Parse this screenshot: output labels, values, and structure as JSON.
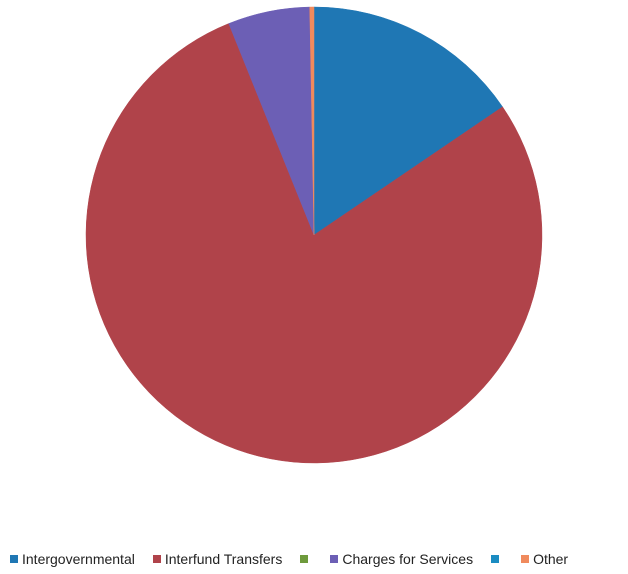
{
  "chart_data": {
    "type": "pie",
    "title": "",
    "series": [
      {
        "categories": [
          "Intergovernmental",
          "Interfund Transfers",
          "",
          "Charges for Services",
          "",
          "Other"
        ],
        "values": [
          15.5,
          78.4,
          0,
          5.8,
          0,
          0.3
        ],
        "colors": [
          "#1F77B4",
          "#B0434A",
          "#6E9A3C",
          "#6C5FB5",
          "#1B8CC2",
          "#F08A5D"
        ]
      }
    ],
    "legend": {
      "placement": "bottom",
      "items": [
        {
          "label": "Intergovernmental",
          "color": "#1F77B4"
        },
        {
          "label": "Interfund Transfers",
          "color": "#B0434A"
        },
        {
          "label": "",
          "color": "#6E9A3C"
        },
        {
          "label": "Charges for Services",
          "color": "#6C5FB5"
        },
        {
          "label": "",
          "color": "#1B8CC2"
        },
        {
          "label": "Other",
          "color": "#F08A5D"
        }
      ]
    }
  }
}
